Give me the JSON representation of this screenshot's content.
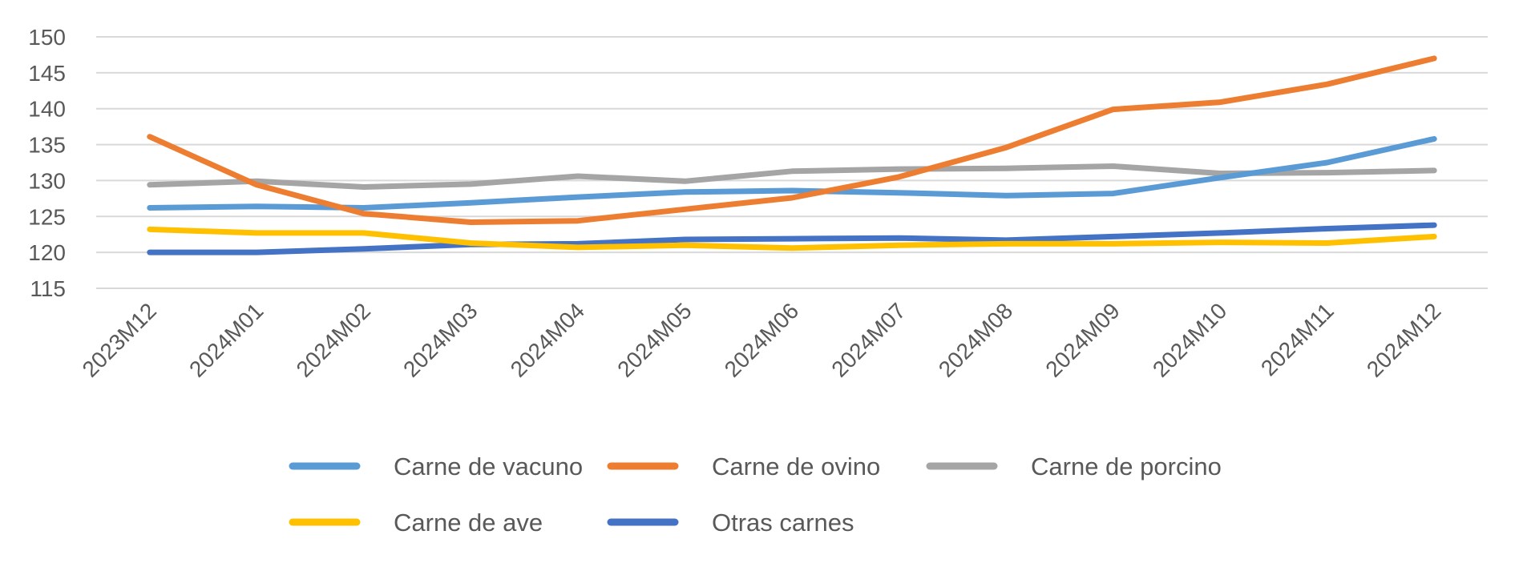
{
  "chart_data": {
    "type": "line",
    "title": "",
    "xlabel": "",
    "ylabel": "",
    "ylim": [
      115,
      150
    ],
    "yticks": [
      115,
      120,
      125,
      130,
      135,
      140,
      145,
      150
    ],
    "grid": true,
    "legend_position": "bottom",
    "categories": [
      "2023M12",
      "2024M01",
      "2024M02",
      "2024M03",
      "2024M04",
      "2024M05",
      "2024M06",
      "2024M07",
      "2024M08",
      "2024M09",
      "2024M10",
      "2024M11",
      "2024M12"
    ],
    "series": [
      {
        "name": "Carne de vacuno",
        "color": "#5b9bd5",
        "values": [
          126.2,
          126.4,
          126.2,
          126.9,
          127.7,
          128.4,
          128.6,
          128.3,
          127.9,
          128.2,
          130.4,
          132.5,
          135.8
        ]
      },
      {
        "name": "Carne de ovino",
        "color": "#ed7d31",
        "values": [
          136.1,
          129.4,
          125.4,
          124.2,
          124.4,
          126.0,
          127.6,
          130.5,
          134.6,
          139.9,
          140.9,
          143.4,
          147.0
        ]
      },
      {
        "name": "Carne de porcino",
        "color": "#a5a5a5",
        "values": [
          129.4,
          129.9,
          129.1,
          129.5,
          130.6,
          129.9,
          131.3,
          131.6,
          131.7,
          132.0,
          131.0,
          131.1,
          131.4
        ]
      },
      {
        "name": "Carne de ave",
        "color": "#ffc000",
        "values": [
          123.2,
          122.7,
          122.7,
          121.3,
          120.7,
          121.0,
          120.6,
          121.0,
          121.2,
          121.2,
          121.4,
          121.3,
          122.2
        ]
      },
      {
        "name": "Otras carnes",
        "color": "#4472c4",
        "values": [
          120.0,
          120.0,
          120.5,
          121.1,
          121.2,
          121.8,
          121.9,
          122.0,
          121.7,
          122.2,
          122.7,
          123.3,
          123.8
        ]
      }
    ]
  }
}
